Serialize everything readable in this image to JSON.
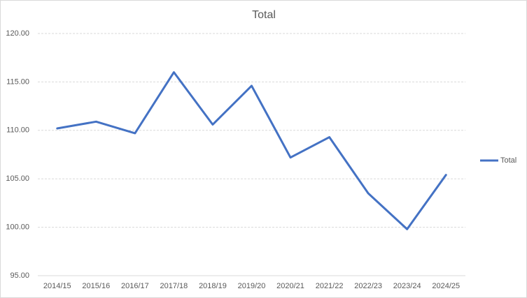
{
  "chart_data": {
    "type": "line",
    "title": "Total",
    "categories": [
      "2014/15",
      "2015/16",
      "2016/17",
      "2017/18",
      "2018/19",
      "2019/20",
      "2020/21",
      "2021/22",
      "2022/23",
      "2023/24",
      "2024/25"
    ],
    "series": [
      {
        "name": "Total",
        "color": "#4472c4",
        "values": [
          110.2,
          110.9,
          109.7,
          116.0,
          110.6,
          114.6,
          107.2,
          109.3,
          103.5,
          99.8,
          105.4
        ]
      }
    ],
    "ylim": [
      95,
      120
    ],
    "yticks": [
      {
        "value": 95,
        "label": "95.00"
      },
      {
        "value": 100,
        "label": "100.00"
      },
      {
        "value": 105,
        "label": "105.00"
      },
      {
        "value": 110,
        "label": "110.00"
      },
      {
        "value": 115,
        "label": "115.00"
      },
      {
        "value": 120,
        "label": "120.00"
      }
    ],
    "grid": true,
    "legend": "right"
  }
}
